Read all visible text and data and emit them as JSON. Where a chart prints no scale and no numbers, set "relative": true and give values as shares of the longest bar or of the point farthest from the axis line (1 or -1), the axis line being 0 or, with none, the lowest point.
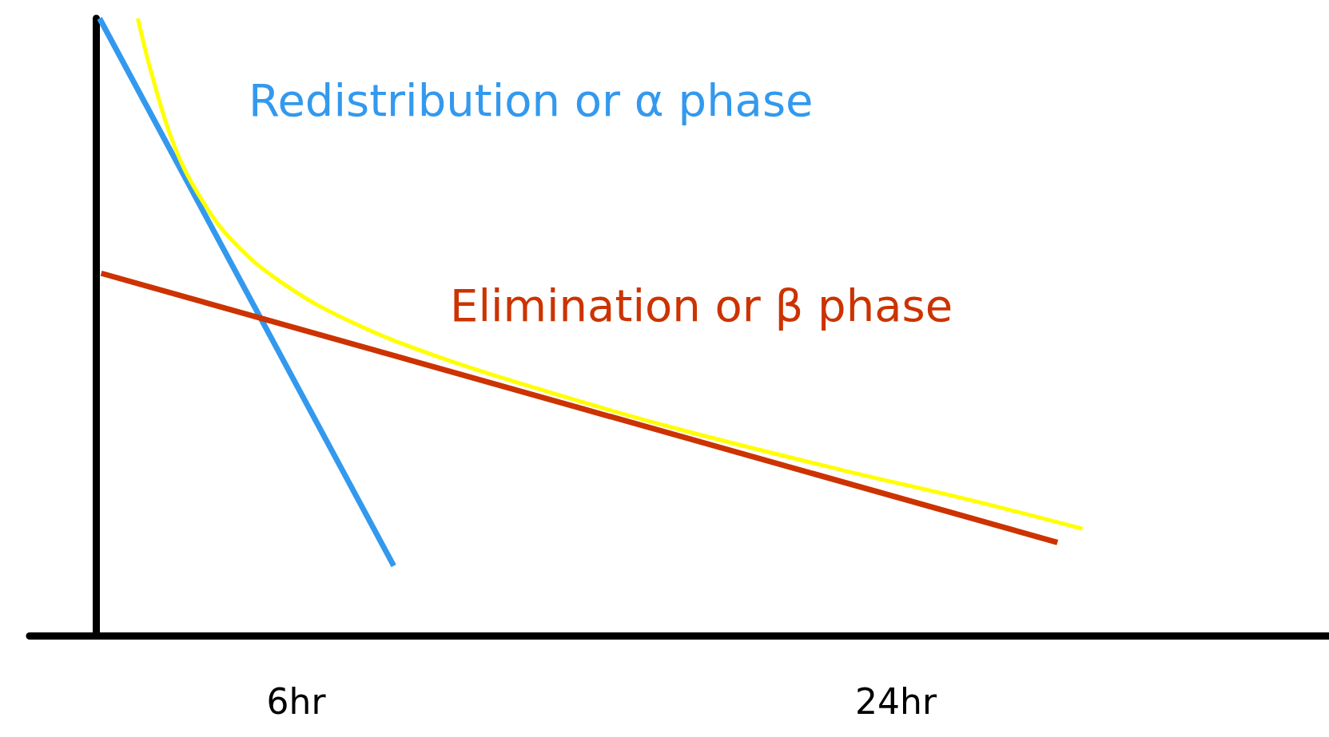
{
  "chart_data": {
    "type": "line",
    "relative": true,
    "legend": false,
    "grid": false,
    "marker": "none",
    "line_style": "solid",
    "xlim": [
      -2,
      37
    ],
    "xticks": [
      {
        "value": 6,
        "label": "6hr"
      },
      {
        "value": 24,
        "label": "24hr"
      }
    ],
    "series": [
      {
        "name": "Redistribution or α phase",
        "color": "#3399ee",
        "x": [
          0.1,
          8.93
        ],
        "values": [
          1,
          0.113
        ]
      },
      {
        "name": "Elimination or β phase",
        "color": "#cc3300",
        "x": [
          0.15,
          28.85
        ],
        "values": [
          0.587,
          0.151
        ]
      },
      {
        "color": "#ffff00",
        "x": [
          1.25,
          1.68,
          2.32,
          3.08,
          4.1,
          5.62,
          7.66,
          10.2,
          13.5,
          17.3,
          22.4,
          26.2,
          29.6
        ],
        "values": [
          1,
          0.907,
          0.797,
          0.714,
          0.639,
          0.57,
          0.508,
          0.453,
          0.396,
          0.337,
          0.268,
          0.22,
          0.173
        ]
      }
    ]
  }
}
